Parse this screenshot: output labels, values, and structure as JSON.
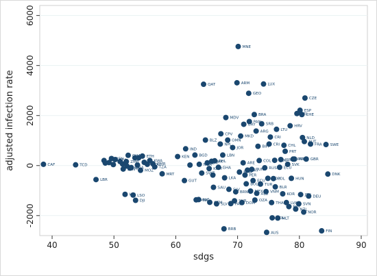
{
  "chart_data": {
    "type": "scatter",
    "title": "",
    "xlabel": "sdgs",
    "ylabel": "adjusted infection rate",
    "xlim": [
      38,
      91
    ],
    "ylim": [
      -2800,
      6400
    ],
    "xticks": [
      40,
      50,
      60,
      70,
      80,
      90
    ],
    "yticks": [
      -2000,
      0,
      2000,
      4000,
      6000
    ],
    "grid": true,
    "marker_color": "#1a476f",
    "points": [
      {
        "x": 38.6,
        "y": 50,
        "label": "CAF"
      },
      {
        "x": 43.8,
        "y": 30,
        "label": "TCD"
      },
      {
        "x": 47.1,
        "y": -560,
        "label": "LBR"
      },
      {
        "x": 48.4,
        "y": 200,
        "label": ""
      },
      {
        "x": 48.6,
        "y": 100,
        "label": ""
      },
      {
        "x": 49.2,
        "y": 120,
        "label": ""
      },
      {
        "x": 49.6,
        "y": 280,
        "label": "BEN"
      },
      {
        "x": 49.9,
        "y": 40,
        "label": ""
      },
      {
        "x": 50.2,
        "y": 240,
        "label": "CIV"
      },
      {
        "x": 51.0,
        "y": 160,
        "label": ""
      },
      {
        "x": 51.4,
        "y": 60,
        "label": ""
      },
      {
        "x": 51.5,
        "y": -140,
        "label": "SEN"
      },
      {
        "x": 51.8,
        "y": -1150,
        "label": "HTI"
      },
      {
        "x": 52.0,
        "y": 160,
        "label": "ZMB"
      },
      {
        "x": 52.1,
        "y": -20,
        "label": ""
      },
      {
        "x": 52.3,
        "y": 410,
        "label": "GHA"
      },
      {
        "x": 52.6,
        "y": -100,
        "label": "NPL"
      },
      {
        "x": 52.8,
        "y": -80,
        "label": "UGA"
      },
      {
        "x": 53.1,
        "y": -1180,
        "label": "LSO"
      },
      {
        "x": 53.4,
        "y": 310,
        "label": ""
      },
      {
        "x": 53.5,
        "y": -1390,
        "label": "DJI"
      },
      {
        "x": 53.8,
        "y": 20,
        "label": ""
      },
      {
        "x": 54.0,
        "y": 310,
        "label": ""
      },
      {
        "x": 54.3,
        "y": -190,
        "label": "MOZ"
      },
      {
        "x": 54.6,
        "y": 380,
        "label": "ETH"
      },
      {
        "x": 54.9,
        "y": 130,
        "label": ""
      },
      {
        "x": 55.4,
        "y": 50,
        "label": "MDG"
      },
      {
        "x": 55.8,
        "y": 200,
        "label": "KWA"
      },
      {
        "x": 56.3,
        "y": 70,
        "label": "CMR"
      },
      {
        "x": 56.6,
        "y": -50,
        "label": "TZA"
      },
      {
        "x": 57.8,
        "y": -330,
        "label": "MRT"
      },
      {
        "x": 60.3,
        "y": 360,
        "label": "KEN"
      },
      {
        "x": 61.4,
        "y": -600,
        "label": "GUT"
      },
      {
        "x": 61.6,
        "y": 670,
        "label": "IND"
      },
      {
        "x": 62.3,
        "y": 20,
        "label": ""
      },
      {
        "x": 63.1,
        "y": 420,
        "label": "BGD"
      },
      {
        "x": 63.3,
        "y": -1370,
        "label": "MNG"
      },
      {
        "x": 63.7,
        "y": -1360,
        "label": "NIC"
      },
      {
        "x": 63.8,
        "y": 50,
        "label": "NGA"
      },
      {
        "x": 64.2,
        "y": -300,
        "label": "SWZ"
      },
      {
        "x": 64.5,
        "y": 3250,
        "label": "QAT"
      },
      {
        "x": 64.8,
        "y": 1020,
        "label": "BLZ"
      },
      {
        "x": 65.1,
        "y": 110,
        "label": "ZAF"
      },
      {
        "x": 65.4,
        "y": -120,
        "label": "KHM"
      },
      {
        "x": 65.5,
        "y": -1470,
        "label": "GTM"
      },
      {
        "x": 65.8,
        "y": 170,
        "label": "PAK"
      },
      {
        "x": 66.0,
        "y": -380,
        "label": ""
      },
      {
        "x": 66.1,
        "y": -870,
        "label": "SAU"
      },
      {
        "x": 66.3,
        "y": 190,
        "label": "PHL"
      },
      {
        "x": 66.6,
        "y": -1530,
        "label": "SLV"
      },
      {
        "x": 66.9,
        "y": -70,
        "label": "GHA"
      },
      {
        "x": 67.3,
        "y": 1270,
        "label": "CPV"
      },
      {
        "x": 67.2,
        "y": 860,
        "label": "NPL"
      },
      {
        "x": 67.6,
        "y": 420,
        "label": "LBN"
      },
      {
        "x": 67.9,
        "y": -490,
        "label": "LKA"
      },
      {
        "x": 68.1,
        "y": 1920,
        "label": "MDV"
      },
      {
        "x": 68.4,
        "y": 1020,
        "label": "OMN"
      },
      {
        "x": 68.6,
        "y": -950,
        "label": "SLV"
      },
      {
        "x": 68.9,
        "y": -1520,
        "label": "PAN"
      },
      {
        "x": 69.2,
        "y": 720,
        "label": "JOR"
      },
      {
        "x": 69.5,
        "y": -1410,
        "label": "SUR"
      },
      {
        "x": 69.7,
        "y": -1050,
        "label": "BRN"
      },
      {
        "x": 69.9,
        "y": 3310,
        "label": "ARM"
      },
      {
        "x": 70.1,
        "y": 4760,
        "label": "MNE"
      },
      {
        "x": 70.3,
        "y": -260,
        "label": "MAR"
      },
      {
        "x": 70.5,
        "y": 1180,
        "label": "MKD"
      },
      {
        "x": 70.7,
        "y": -1480,
        "label": "DOM"
      },
      {
        "x": 70.9,
        "y": 110,
        "label": "ARE"
      },
      {
        "x": 71.0,
        "y": 1650,
        "label": "URY"
      },
      {
        "x": 71.2,
        "y": -380,
        "label": "PER"
      },
      {
        "x": 71.4,
        "y": -730,
        "label": "BOL"
      },
      {
        "x": 71.6,
        "y": -180,
        "label": "PRY"
      },
      {
        "x": 71.8,
        "y": 2890,
        "label": "GEO"
      },
      {
        "x": 71.9,
        "y": 1760,
        "label": "PAN"
      },
      {
        "x": 72.1,
        "y": -1020,
        "label": "MEX"
      },
      {
        "x": 72.3,
        "y": -150,
        "label": "TUN"
      },
      {
        "x": 72.5,
        "y": -600,
        "label": "ECU"
      },
      {
        "x": 72.7,
        "y": 2040,
        "label": "BRA"
      },
      {
        "x": 72.8,
        "y": -1380,
        "label": "OZA"
      },
      {
        "x": 73.0,
        "y": 1380,
        "label": "ARG"
      },
      {
        "x": 73.1,
        "y": -1110,
        "label": "ALB"
      },
      {
        "x": 73.3,
        "y": 770,
        "label": "BIH"
      },
      {
        "x": 73.5,
        "y": 200,
        "label": "COL"
      },
      {
        "x": 73.7,
        "y": -740,
        "label": "TUR"
      },
      {
        "x": 73.9,
        "y": 1670,
        "label": "SRB"
      },
      {
        "x": 74.2,
        "y": 3260,
        "label": "LUX"
      },
      {
        "x": 74.4,
        "y": -90,
        "label": "RUS"
      },
      {
        "x": 74.6,
        "y": -1040,
        "label": "VNM"
      },
      {
        "x": 74.7,
        "y": -2670,
        "label": "AUS"
      },
      {
        "x": 74.9,
        "y": -510,
        "label": "ROU"
      },
      {
        "x": 75.1,
        "y": 860,
        "label": "CRI"
      },
      {
        "x": 75.3,
        "y": 1140,
        "label": "CRI"
      },
      {
        "x": 75.5,
        "y": -1480,
        "label": "THA"
      },
      {
        "x": 75.6,
        "y": -2090,
        "label": "DOL"
      },
      {
        "x": 75.8,
        "y": -520,
        "label": "POL"
      },
      {
        "x": 76.0,
        "y": 210,
        "label": "RDU"
      },
      {
        "x": 76.1,
        "y": -850,
        "label": "BLR"
      },
      {
        "x": 76.3,
        "y": 1450,
        "label": "LTU"
      },
      {
        "x": 76.5,
        "y": -2100,
        "label": "MLT"
      },
      {
        "x": 76.8,
        "y": -70,
        "label": "ECU"
      },
      {
        "x": 77.0,
        "y": 240,
        "label": "ISR"
      },
      {
        "x": 77.3,
        "y": -1130,
        "label": "KOR"
      },
      {
        "x": 77.5,
        "y": 810,
        "label": "CHL"
      },
      {
        "x": 77.7,
        "y": 570,
        "label": "PRT"
      },
      {
        "x": 77.9,
        "y": -1480,
        "label": "LVA"
      },
      {
        "x": 78.1,
        "y": 50,
        "label": "SVK"
      },
      {
        "x": 78.3,
        "y": -1640,
        "label": "EST"
      },
      {
        "x": 78.5,
        "y": 1590,
        "label": "HRV"
      },
      {
        "x": 78.7,
        "y": -510,
        "label": "HUN"
      },
      {
        "x": 79.0,
        "y": 260,
        "label": "PRT"
      },
      {
        "x": 79.2,
        "y": 260,
        "label": "PRT"
      },
      {
        "x": 79.4,
        "y": -1740,
        "label": "NZL"
      },
      {
        "x": 79.6,
        "y": 2080,
        "label": "BEL"
      },
      {
        "x": 79.9,
        "y": -1530,
        "label": "SVN"
      },
      {
        "x": 80.1,
        "y": 2210,
        "label": "ESP"
      },
      {
        "x": 80.2,
        "y": -1160,
        "label": "JPN"
      },
      {
        "x": 80.4,
        "y": 2040,
        "label": "CHE"
      },
      {
        "x": 80.5,
        "y": 1120,
        "label": "NLD"
      },
      {
        "x": 80.7,
        "y": -1860,
        "label": "NOR"
      },
      {
        "x": 80.8,
        "y": 960,
        "label": "AUT"
      },
      {
        "x": 80.9,
        "y": 2700,
        "label": "CZE"
      },
      {
        "x": 81.1,
        "y": 260,
        "label": "GBR"
      },
      {
        "x": 81.5,
        "y": -1220,
        "label": "DEU"
      },
      {
        "x": 81.8,
        "y": 860,
        "label": "FRA"
      },
      {
        "x": 83.6,
        "y": -2610,
        "label": "FIN"
      },
      {
        "x": 84.3,
        "y": 840,
        "label": "SWE"
      },
      {
        "x": 84.6,
        "y": -340,
        "label": "DNK"
      },
      {
        "x": 67.8,
        "y": -2530,
        "label": "BRB"
      }
    ]
  }
}
